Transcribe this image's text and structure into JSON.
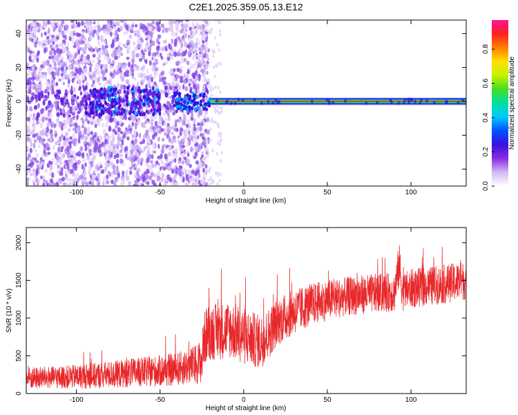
{
  "page": {
    "title": "C2E1.2025.359.05.13.E12"
  },
  "colors": {
    "snr_line": "#e8282b",
    "ridge_core": "#e03a1a",
    "scatter": "#7a2be0",
    "colormap": [
      "#ffffff",
      "#d2b8f5",
      "#8a2be2",
      "#3a10e0",
      "#0050ff",
      "#00c8ff",
      "#00e0a0",
      "#40e020",
      "#c8f000",
      "#ffe000",
      "#ff8000",
      "#ff2020",
      "#ff1493"
    ]
  },
  "chart_data": [
    {
      "type": "heatmap",
      "title": "C2E1.2025.359.05.13.E12",
      "xlabel": "Height of straight line (km)",
      "ylabel": "Frequency (Hz)",
      "xlim": [
        -130,
        133
      ],
      "ylim": [
        -50,
        48
      ],
      "x_ticks": [
        -100,
        -50,
        0,
        50,
        100
      ],
      "x_tick_labels": [
        "-100",
        "-50",
        "0",
        "50",
        "100"
      ],
      "y_ticks": [
        -40,
        -20,
        0,
        20,
        40
      ],
      "y_tick_labels": [
        "-40",
        "-20",
        "0",
        "20",
        "40"
      ],
      "colorbar": {
        "label": "Normalized spectral amplitude",
        "range": [
          0,
          0.97
        ],
        "ticks": [
          0.0,
          0.2,
          0.4,
          0.6,
          0.8
        ],
        "tick_labels": [
          "0.0",
          "0.2",
          "0.4",
          "0.6",
          "0.8"
        ]
      },
      "features": {
        "noise_region_x": [
          -130,
          -25
        ],
        "carrier_frequency_hz": 0,
        "carrier_start_x": -20,
        "carrier_end_x": 133
      }
    },
    {
      "type": "line",
      "xlabel": "Height of straight line (km)",
      "ylabel": "SNR (10 * v/v)",
      "xlim": [
        -130,
        133
      ],
      "ylim": [
        0,
        2200
      ],
      "x_ticks": [
        -100,
        -50,
        0,
        50,
        100
      ],
      "x_tick_labels": [
        "-100",
        "-50",
        "0",
        "50",
        "100"
      ],
      "y_ticks": [
        0,
        500,
        1000,
        1500,
        2000
      ],
      "y_tick_labels": [
        "0",
        "500",
        "1000",
        "1500",
        "2000"
      ],
      "series": [
        {
          "x": [
            -130,
            -120,
            -110,
            -100,
            -90,
            -80,
            -70,
            -60,
            -50,
            -40,
            -30,
            -25,
            -24,
            -22,
            -20,
            -15,
            -10,
            -5,
            0,
            5,
            10,
            15,
            20,
            30,
            40,
            50,
            60,
            70,
            80,
            90,
            93,
            95,
            100,
            110,
            120,
            133
          ],
          "y": [
            200,
            210,
            215,
            225,
            235,
            250,
            270,
            285,
            300,
            320,
            380,
            430,
            700,
            800,
            820,
            820,
            850,
            820,
            760,
            720,
            680,
            800,
            950,
            1080,
            1180,
            1240,
            1280,
            1310,
            1330,
            1340,
            1700,
            1350,
            1390,
            1420,
            1450,
            1500
          ],
          "noise_amplitude": [
            150,
            150,
            150,
            160,
            170,
            180,
            190,
            200,
            210,
            220,
            250,
            300,
            350,
            380,
            380,
            380,
            380,
            380,
            380,
            370,
            360,
            340,
            320,
            300,
            280,
            270,
            260,
            260,
            260,
            260,
            300,
            260,
            260,
            260,
            260,
            260
          ]
        }
      ]
    }
  ]
}
